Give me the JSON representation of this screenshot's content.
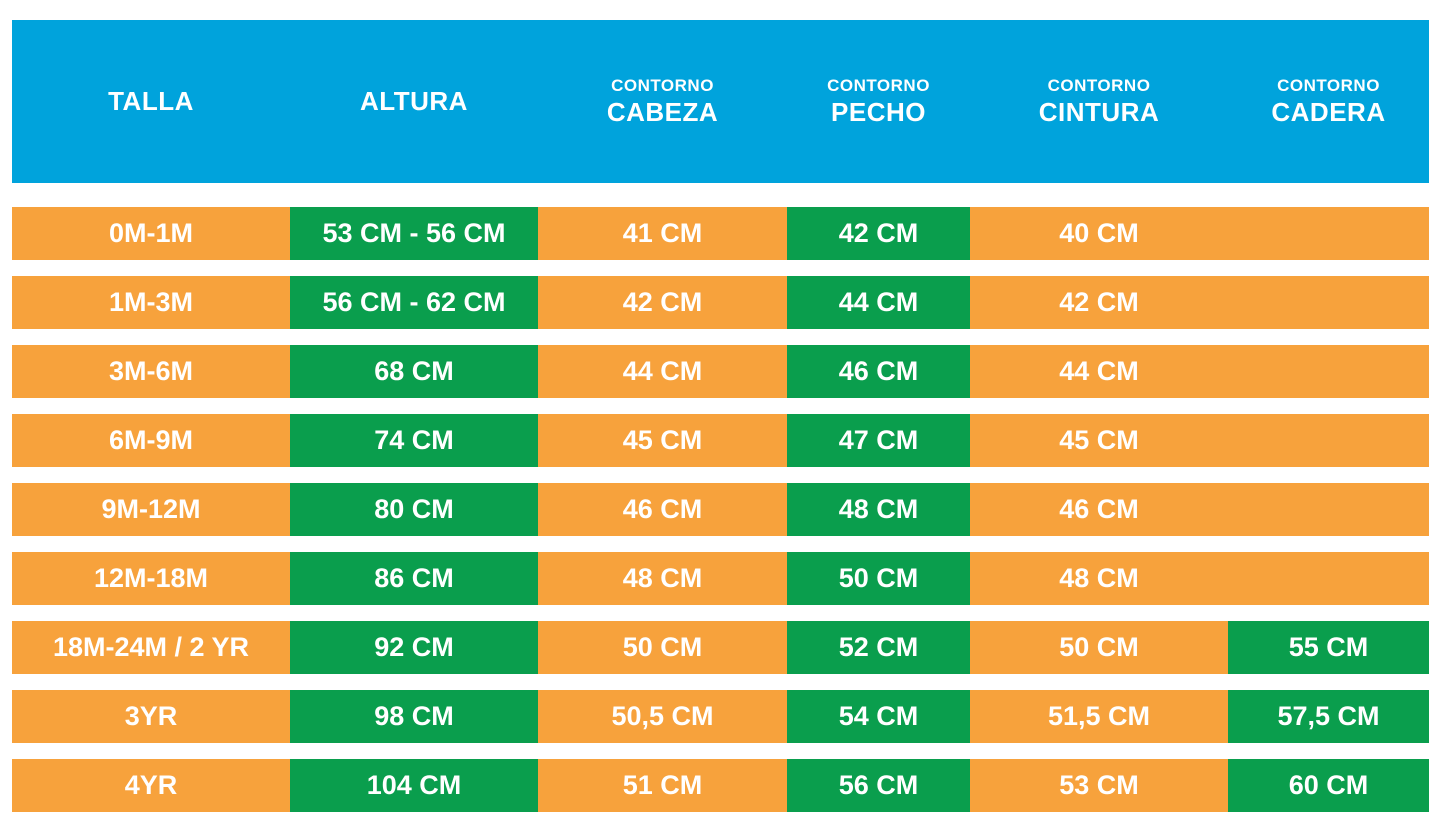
{
  "colors": {
    "header_bg": "#00a3dc",
    "row_orange": "#f7a23c",
    "accent_green": "#0a9e4d",
    "text": "#ffffff",
    "page_bg": "#ffffff"
  },
  "table": {
    "columns": [
      {
        "id": "talla",
        "label_top": "",
        "label": "TALLA"
      },
      {
        "id": "altura",
        "label_top": "",
        "label": "ALTURA"
      },
      {
        "id": "cabeza",
        "label_top": "CONTORNO",
        "label": "CABEZA"
      },
      {
        "id": "pecho",
        "label_top": "CONTORNO",
        "label": "PECHO"
      },
      {
        "id": "cintura",
        "label_top": "CONTORNO",
        "label": "CINTURA"
      },
      {
        "id": "cadera",
        "label_top": "CONTORNO",
        "label": "CADERA"
      }
    ],
    "rows": [
      {
        "cells": [
          {
            "text": "0M-1M",
            "bg": "orange"
          },
          {
            "text": "53 CM - 56 CM",
            "bg": "green"
          },
          {
            "text": "41 CM",
            "bg": "orange"
          },
          {
            "text": "42 CM",
            "bg": "green"
          },
          {
            "text": "40 CM",
            "bg": "orange"
          },
          {
            "text": "",
            "bg": "orange"
          }
        ]
      },
      {
        "cells": [
          {
            "text": "1M-3M",
            "bg": "orange"
          },
          {
            "text": "56 CM - 62 CM",
            "bg": "green"
          },
          {
            "text": "42 CM",
            "bg": "orange"
          },
          {
            "text": "44 CM",
            "bg": "green"
          },
          {
            "text": "42 CM",
            "bg": "orange"
          },
          {
            "text": "",
            "bg": "orange"
          }
        ]
      },
      {
        "cells": [
          {
            "text": "3M-6M",
            "bg": "orange"
          },
          {
            "text": "68 CM",
            "bg": "green"
          },
          {
            "text": "44 CM",
            "bg": "orange"
          },
          {
            "text": "46 CM",
            "bg": "green"
          },
          {
            "text": "44 CM",
            "bg": "orange"
          },
          {
            "text": "",
            "bg": "orange"
          }
        ]
      },
      {
        "cells": [
          {
            "text": "6M-9M",
            "bg": "orange"
          },
          {
            "text": "74 CM",
            "bg": "green"
          },
          {
            "text": "45 CM",
            "bg": "orange"
          },
          {
            "text": "47 CM",
            "bg": "green"
          },
          {
            "text": "45 CM",
            "bg": "orange"
          },
          {
            "text": "",
            "bg": "orange"
          }
        ]
      },
      {
        "cells": [
          {
            "text": "9M-12M",
            "bg": "orange"
          },
          {
            "text": "80 CM",
            "bg": "green"
          },
          {
            "text": "46 CM",
            "bg": "orange"
          },
          {
            "text": "48 CM",
            "bg": "green"
          },
          {
            "text": "46 CM",
            "bg": "orange"
          },
          {
            "text": "",
            "bg": "orange"
          }
        ]
      },
      {
        "cells": [
          {
            "text": "12M-18M",
            "bg": "orange"
          },
          {
            "text": "86 CM",
            "bg": "green"
          },
          {
            "text": "48 CM",
            "bg": "orange"
          },
          {
            "text": "50 CM",
            "bg": "green"
          },
          {
            "text": "48 CM",
            "bg": "orange"
          },
          {
            "text": "",
            "bg": "orange"
          }
        ]
      },
      {
        "cells": [
          {
            "text": "18M-24M / 2 YR",
            "bg": "orange"
          },
          {
            "text": "92 CM",
            "bg": "green"
          },
          {
            "text": "50 CM",
            "bg": "orange"
          },
          {
            "text": "52 CM",
            "bg": "green"
          },
          {
            "text": "50 CM",
            "bg": "orange"
          },
          {
            "text": "55 CM",
            "bg": "green"
          }
        ]
      },
      {
        "cells": [
          {
            "text": "3YR",
            "bg": "orange"
          },
          {
            "text": "98 CM",
            "bg": "green"
          },
          {
            "text": "50,5 CM",
            "bg": "orange"
          },
          {
            "text": "54 CM",
            "bg": "green"
          },
          {
            "text": "51,5 CM",
            "bg": "orange"
          },
          {
            "text": "57,5 CM",
            "bg": "green"
          }
        ]
      },
      {
        "cells": [
          {
            "text": "4YR",
            "bg": "orange"
          },
          {
            "text": "104 CM",
            "bg": "green"
          },
          {
            "text": "51 CM",
            "bg": "orange"
          },
          {
            "text": "56 CM",
            "bg": "green"
          },
          {
            "text": "53 CM",
            "bg": "orange"
          },
          {
            "text": "60 CM",
            "bg": "green"
          }
        ]
      }
    ]
  },
  "chart_data": {
    "type": "table",
    "title": "",
    "columns": [
      "TALLA",
      "ALTURA",
      "CONTORNO CABEZA",
      "CONTORNO PECHO",
      "CONTORNO CINTURA",
      "CONTORNO CADERA"
    ],
    "rows": [
      [
        "0M-1M",
        "53 CM - 56 CM",
        "41 CM",
        "42 CM",
        "40 CM",
        ""
      ],
      [
        "1M-3M",
        "56 CM - 62 CM",
        "42 CM",
        "44 CM",
        "42 CM",
        ""
      ],
      [
        "3M-6M",
        "68 CM",
        "44 CM",
        "46 CM",
        "44 CM",
        ""
      ],
      [
        "6M-9M",
        "74 CM",
        "45 CM",
        "47 CM",
        "45 CM",
        ""
      ],
      [
        "9M-12M",
        "80 CM",
        "46 CM",
        "48 CM",
        "46 CM",
        ""
      ],
      [
        "12M-18M",
        "86 CM",
        "48 CM",
        "50 CM",
        "48 CM",
        ""
      ],
      [
        "18M-24M / 2 YR",
        "92 CM",
        "50 CM",
        "52 CM",
        "50 CM",
        "55 CM"
      ],
      [
        "3YR",
        "98 CM",
        "50,5 CM",
        "54 CM",
        "51,5 CM",
        "57,5 CM"
      ],
      [
        "4YR",
        "104 CM",
        "51 CM",
        "56 CM",
        "53 CM",
        "60 CM"
      ]
    ]
  }
}
